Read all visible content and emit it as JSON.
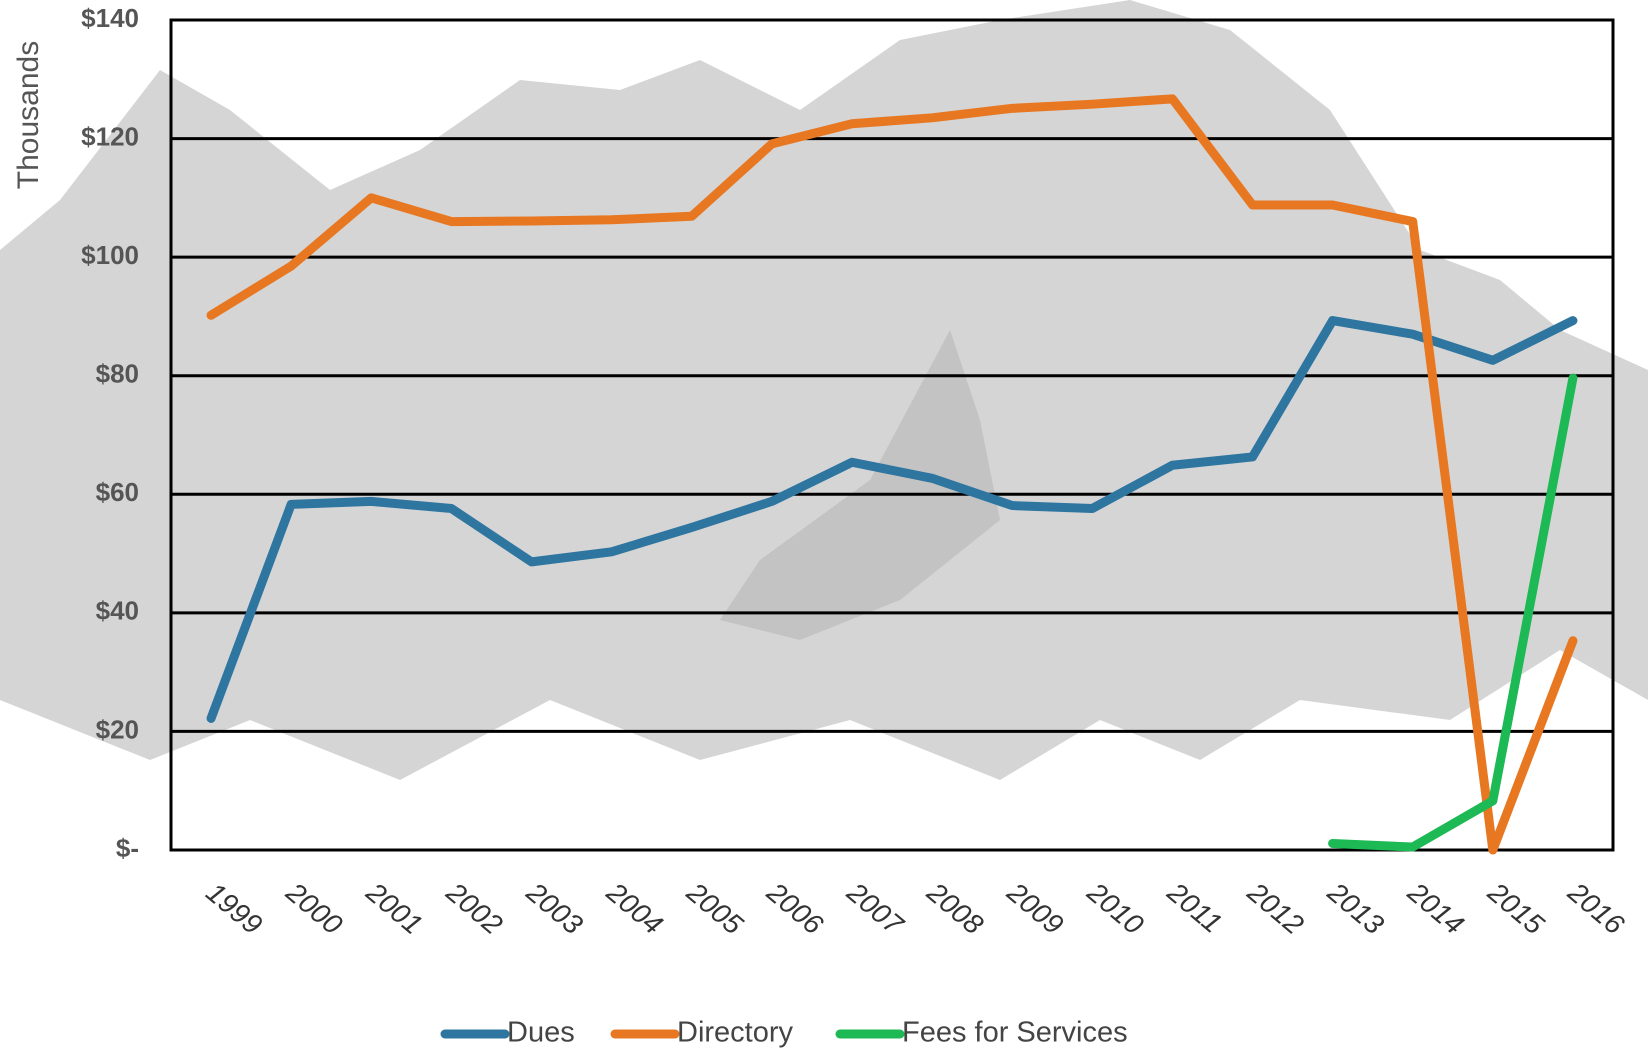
{
  "chart_data": {
    "type": "line",
    "y_label": "Thousands",
    "categories": [
      "1999",
      "2000",
      "2001",
      "2002",
      "2003",
      "2004",
      "2005",
      "2006",
      "2007",
      "2008",
      "2009",
      "2010",
      "2011",
      "2012",
      "2013",
      "2014",
      "2015",
      "2016"
    ],
    "series": [
      {
        "name": "Dues",
        "color": "#2e75a0",
        "values": [
          22.2,
          58.3,
          58.8,
          57.6,
          48.6,
          50.3,
          54.4,
          58.8,
          65.4,
          62.7,
          58.1,
          57.6,
          64.9,
          66.3,
          89.3,
          87.0,
          82.6,
          89.3
        ]
      },
      {
        "name": "Directory",
        "color": "#e87722",
        "values": [
          90.2,
          98.5,
          110.0,
          106.0,
          106.1,
          106.3,
          106.9,
          119.1,
          122.5,
          123.5,
          125.1,
          125.8,
          126.7,
          108.8,
          108.8,
          106.0,
          0,
          35.3
        ]
      },
      {
        "name": "Fees for Services",
        "color": "#1db954",
        "values": [
          null,
          null,
          null,
          null,
          null,
          null,
          null,
          null,
          null,
          null,
          null,
          null,
          null,
          null,
          1.1,
          0.5,
          8.3,
          79.6
        ]
      }
    ],
    "ylim": [
      0,
      140
    ],
    "yticks": [
      {
        "value": 0,
        "label": "$-"
      },
      {
        "value": 20,
        "label": "$20"
      },
      {
        "value": 40,
        "label": "$40"
      },
      {
        "value": 60,
        "label": "$60"
      },
      {
        "value": 80,
        "label": "$80"
      },
      {
        "value": 100,
        "label": "$100"
      },
      {
        "value": 120,
        "label": "$120"
      },
      {
        "value": 140,
        "label": "$140"
      }
    ],
    "grid": true
  }
}
